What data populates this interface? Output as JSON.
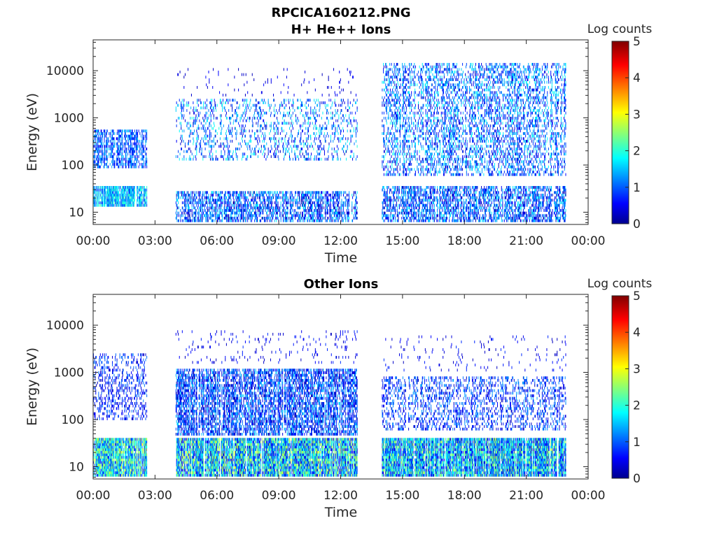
{
  "figure_title": "RPCICA160212.PNG",
  "colormap": {
    "name": "jet",
    "stops": [
      "#00008f",
      "#0000ff",
      "#00ffff",
      "#ffff00",
      "#ff0000",
      "#800000"
    ]
  },
  "chart_data": [
    {
      "type": "heatmap",
      "title": "H+ He++ Ions",
      "xlabel": "Time",
      "ylabel": "Energy (eV)",
      "x_ticks": [
        "00:00",
        "03:00",
        "06:00",
        "09:00",
        "12:00",
        "15:00",
        "18:00",
        "21:00",
        "00:00"
      ],
      "x_range_hours": [
        0,
        24
      ],
      "y_scale": "log",
      "y_ticks": [
        10,
        100,
        1000,
        10000
      ],
      "y_tick_labels": [
        "10",
        "100",
        "1000",
        "10000"
      ],
      "y_range_eV": [
        5.5,
        45000
      ],
      "colorbar": {
        "label": "Log counts",
        "range": [
          0,
          5
        ],
        "ticks": [
          "0",
          "1",
          "2",
          "3",
          "4",
          "5"
        ]
      },
      "data_intervals_hours": [
        [
          0.0,
          2.6
        ],
        [
          4.0,
          12.8
        ],
        [
          14.0,
          22.9
        ]
      ],
      "populations": [
        {
          "t": [
            0.0,
            2.6
          ],
          "e": [
            14,
            35
          ],
          "density": 0.9,
          "level": [
            0.8,
            2.2
          ]
        },
        {
          "t": [
            0.0,
            2.6
          ],
          "e": [
            90,
            600
          ],
          "density": 0.55,
          "level": [
            0.4,
            1.6
          ]
        },
        {
          "t": [
            4.0,
            12.8
          ],
          "e": [
            6,
            28
          ],
          "density": 0.55,
          "level": [
            0.1,
            1.8
          ]
        },
        {
          "t": [
            4.0,
            12.8
          ],
          "e": [
            130,
            2600
          ],
          "density": 0.2,
          "level": [
            0.2,
            2.0
          ]
        },
        {
          "t": [
            4.0,
            12.8
          ],
          "e": [
            3000,
            12000
          ],
          "density": 0.03,
          "level": [
            0.2,
            0.6
          ]
        },
        {
          "t": [
            14.0,
            22.9
          ],
          "e": [
            6,
            36
          ],
          "density": 0.55,
          "level": [
            0.1,
            1.8
          ]
        },
        {
          "t": [
            14.0,
            22.9
          ],
          "e": [
            60,
            14000
          ],
          "density": 0.35,
          "level": [
            0.2,
            1.9
          ]
        }
      ]
    },
    {
      "type": "heatmap",
      "title": "Other Ions",
      "xlabel": "Time",
      "ylabel": "Energy (eV)",
      "x_ticks": [
        "00:00",
        "03:00",
        "06:00",
        "09:00",
        "12:00",
        "15:00",
        "18:00",
        "21:00",
        "00:00"
      ],
      "x_range_hours": [
        0,
        24
      ],
      "y_scale": "log",
      "y_ticks": [
        10,
        100,
        1000,
        10000
      ],
      "y_tick_labels": [
        "10",
        "100",
        "1000",
        "10000"
      ],
      "y_range_eV": [
        5.5,
        45000
      ],
      "colorbar": {
        "label": "Log counts",
        "range": [
          0,
          5
        ],
        "ticks": [
          "0",
          "1",
          "2",
          "3",
          "4",
          "5"
        ]
      },
      "data_intervals_hours": [
        [
          0.0,
          2.6
        ],
        [
          4.0,
          12.8
        ],
        [
          14.0,
          22.9
        ]
      ],
      "populations": [
        {
          "t": [
            0.0,
            2.6
          ],
          "e": [
            6,
            42
          ],
          "density": 0.95,
          "level": [
            0.6,
            2.9
          ]
        },
        {
          "t": [
            0.0,
            2.6
          ],
          "e": [
            100,
            2500
          ],
          "density": 0.25,
          "level": [
            0.2,
            1.2
          ]
        },
        {
          "t": [
            4.0,
            12.8
          ],
          "e": [
            6,
            42
          ],
          "density": 0.95,
          "level": [
            0.3,
            2.9
          ]
        },
        {
          "t": [
            4.0,
            12.8
          ],
          "e": [
            45,
            1200
          ],
          "density": 0.6,
          "level": [
            0.1,
            1.6
          ]
        },
        {
          "t": [
            4.0,
            12.8
          ],
          "e": [
            1500,
            8000
          ],
          "density": 0.05,
          "level": [
            0.2,
            0.8
          ]
        },
        {
          "t": [
            14.0,
            22.9
          ],
          "e": [
            6,
            42
          ],
          "density": 0.95,
          "level": [
            0.3,
            2.7
          ]
        },
        {
          "t": [
            14.0,
            22.9
          ],
          "e": [
            60,
            800
          ],
          "density": 0.3,
          "level": [
            0.2,
            1.4
          ]
        },
        {
          "t": [
            14.0,
            22.9
          ],
          "e": [
            1000,
            6000
          ],
          "density": 0.04,
          "level": [
            0.2,
            0.8
          ]
        }
      ]
    }
  ]
}
